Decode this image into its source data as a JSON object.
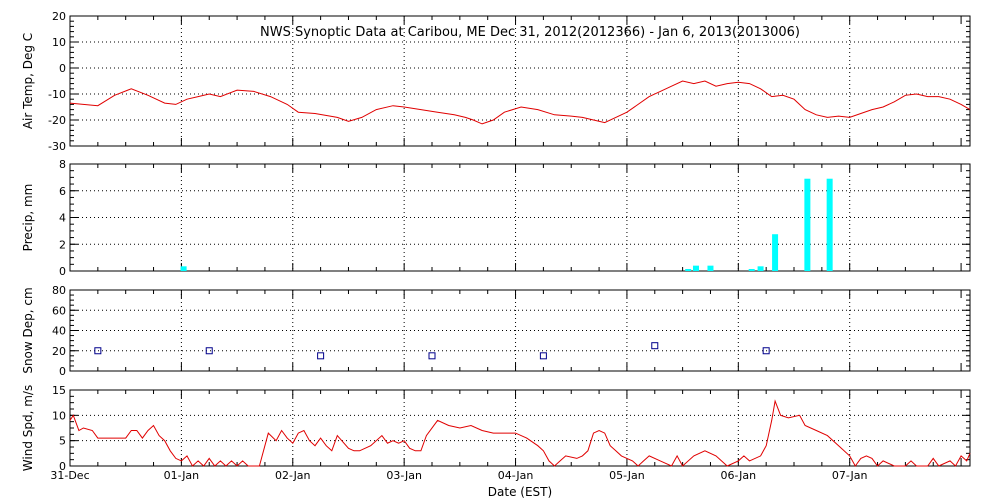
{
  "title": "NWS Synoptic Data at Caribou, ME   Dec 31, 2012(2012366) - Jan  6, 2013(2013006)",
  "xlabel": "Date (EST)",
  "x_ticks": [
    "31-Dec",
    "01-Jan",
    "02-Jan",
    "03-Jan",
    "04-Jan",
    "05-Jan",
    "06-Jan",
    "07-Jan"
  ],
  "colors": {
    "temp": "#e00000",
    "precip": "#00ffff",
    "snow": "#00008b",
    "wind": "#e00000",
    "grid": "#000000"
  },
  "chart_data": [
    {
      "type": "line",
      "ylabel": "Air Temp, Deg C",
      "ylim": [
        -30,
        20
      ],
      "yticks": [
        20,
        10,
        0,
        -10,
        -20,
        -30
      ],
      "grid": true,
      "x_unit": "days since 31-Dec 00:00",
      "points": [
        [
          0,
          -13.5
        ],
        [
          0.25,
          -14.5
        ],
        [
          0.4,
          -10.5
        ],
        [
          0.55,
          -8
        ],
        [
          0.7,
          -10.5
        ],
        [
          0.85,
          -13.5
        ],
        [
          0.95,
          -14
        ],
        [
          1.05,
          -12
        ],
        [
          1.15,
          -11
        ],
        [
          1.25,
          -10
        ],
        [
          1.35,
          -11
        ],
        [
          1.5,
          -8.5
        ],
        [
          1.65,
          -9
        ],
        [
          1.8,
          -11
        ],
        [
          1.95,
          -14
        ],
        [
          2.05,
          -17
        ],
        [
          2.2,
          -17.5
        ],
        [
          2.4,
          -19
        ],
        [
          2.5,
          -20.5
        ],
        [
          2.62,
          -19
        ],
        [
          2.75,
          -16
        ],
        [
          2.9,
          -14.5
        ],
        [
          3.0,
          -15
        ],
        [
          3.15,
          -16
        ],
        [
          3.3,
          -17
        ],
        [
          3.45,
          -18
        ],
        [
          3.55,
          -19
        ],
        [
          3.62,
          -20
        ],
        [
          3.7,
          -21.5
        ],
        [
          3.8,
          -20
        ],
        [
          3.9,
          -17
        ],
        [
          4.05,
          -15
        ],
        [
          4.2,
          -16
        ],
        [
          4.35,
          -18
        ],
        [
          4.5,
          -18.5
        ],
        [
          4.6,
          -19
        ],
        [
          4.7,
          -20
        ],
        [
          4.8,
          -21
        ],
        [
          4.9,
          -19
        ],
        [
          5.0,
          -17
        ],
        [
          5.1,
          -14
        ],
        [
          5.2,
          -11
        ],
        [
          5.3,
          -9
        ],
        [
          5.4,
          -7
        ],
        [
          5.5,
          -5
        ],
        [
          5.6,
          -6
        ],
        [
          5.7,
          -5
        ],
        [
          5.8,
          -7
        ],
        [
          5.9,
          -6
        ],
        [
          6.0,
          -5.5
        ],
        [
          6.1,
          -6
        ],
        [
          6.2,
          -8
        ],
        [
          6.3,
          -11
        ],
        [
          6.4,
          -10.5
        ],
        [
          6.5,
          -12
        ],
        [
          6.6,
          -16
        ],
        [
          6.7,
          -18
        ],
        [
          6.8,
          -19
        ],
        [
          6.9,
          -18.5
        ],
        [
          7.0,
          -19
        ],
        [
          7.1,
          -17.5
        ],
        [
          7.2,
          -16
        ],
        [
          7.3,
          -15
        ],
        [
          7.4,
          -13
        ],
        [
          7.5,
          -10.5
        ],
        [
          7.6,
          -10
        ],
        [
          7.7,
          -11
        ],
        [
          7.8,
          -11
        ],
        [
          7.9,
          -12
        ],
        [
          8.0,
          -14
        ],
        [
          8.08,
          -16
        ]
      ]
    },
    {
      "type": "bar",
      "ylabel": "Precip, mm",
      "ylim": [
        0,
        8
      ],
      "yticks": [
        8,
        6,
        4,
        2,
        0
      ],
      "grid": true,
      "x_unit": "days since 31-Dec 00:00",
      "bars": [
        [
          1.02,
          0.35
        ],
        [
          5.55,
          0.15
        ],
        [
          5.62,
          0.4
        ],
        [
          5.75,
          0.4
        ],
        [
          6.12,
          0.15
        ],
        [
          6.2,
          0.35
        ],
        [
          6.33,
          2.75
        ],
        [
          6.62,
          6.9
        ],
        [
          6.82,
          6.9
        ]
      ]
    },
    {
      "type": "scatter",
      "ylabel": "Snow Dep, cm",
      "ylim": [
        0,
        80
      ],
      "yticks": [
        80,
        60,
        40,
        20,
        0
      ],
      "grid": true,
      "x_unit": "days since 31-Dec 00:00",
      "points": [
        [
          0.25,
          20
        ],
        [
          1.25,
          20
        ],
        [
          2.25,
          15
        ],
        [
          3.25,
          15
        ],
        [
          4.25,
          15
        ],
        [
          5.25,
          25
        ],
        [
          6.25,
          20
        ]
      ]
    },
    {
      "type": "line",
      "ylabel": "Wind Spd, m/s",
      "ylim": [
        0,
        15
      ],
      "yticks": [
        15,
        10,
        5,
        0
      ],
      "grid": true,
      "x_unit": "days since 31-Dec 00:00",
      "points": [
        [
          0,
          9
        ],
        [
          0.03,
          10
        ],
        [
          0.08,
          7
        ],
        [
          0.12,
          7.5
        ],
        [
          0.2,
          7
        ],
        [
          0.25,
          5.5
        ],
        [
          0.4,
          5.5
        ],
        [
          0.5,
          5.5
        ],
        [
          0.55,
          7
        ],
        [
          0.6,
          7
        ],
        [
          0.65,
          5.5
        ],
        [
          0.7,
          7
        ],
        [
          0.75,
          8
        ],
        [
          0.8,
          6
        ],
        [
          0.85,
          5
        ],
        [
          0.9,
          3
        ],
        [
          0.95,
          1.5
        ],
        [
          1.0,
          1
        ],
        [
          1.05,
          2
        ],
        [
          1.1,
          0
        ],
        [
          1.15,
          1
        ],
        [
          1.2,
          0
        ],
        [
          1.25,
          1.5
        ],
        [
          1.3,
          0
        ],
        [
          1.35,
          1
        ],
        [
          1.4,
          0
        ],
        [
          1.45,
          1
        ],
        [
          1.5,
          0
        ],
        [
          1.55,
          1
        ],
        [
          1.6,
          0
        ],
        [
          1.7,
          0
        ],
        [
          1.78,
          6.5
        ],
        [
          1.85,
          5
        ],
        [
          1.9,
          7
        ],
        [
          1.95,
          5.5
        ],
        [
          2.0,
          4.5
        ],
        [
          2.05,
          6.5
        ],
        [
          2.1,
          7
        ],
        [
          2.15,
          5
        ],
        [
          2.2,
          4
        ],
        [
          2.25,
          5.5
        ],
        [
          2.3,
          4
        ],
        [
          2.35,
          3
        ],
        [
          2.4,
          6
        ],
        [
          2.5,
          3.5
        ],
        [
          2.55,
          3
        ],
        [
          2.6,
          3
        ],
        [
          2.7,
          4
        ],
        [
          2.8,
          6
        ],
        [
          2.85,
          4.5
        ],
        [
          2.9,
          5
        ],
        [
          2.95,
          4.5
        ],
        [
          3.0,
          5
        ],
        [
          3.05,
          3.5
        ],
        [
          3.1,
          3
        ],
        [
          3.15,
          3
        ],
        [
          3.2,
          6
        ],
        [
          3.3,
          9
        ],
        [
          3.4,
          8
        ],
        [
          3.5,
          7.5
        ],
        [
          3.6,
          8
        ],
        [
          3.7,
          7
        ],
        [
          3.8,
          6.5
        ],
        [
          3.9,
          6.5
        ],
        [
          4.0,
          6.5
        ],
        [
          4.1,
          5.5
        ],
        [
          4.2,
          4
        ],
        [
          4.25,
          3
        ],
        [
          4.3,
          1
        ],
        [
          4.35,
          0
        ],
        [
          4.4,
          1
        ],
        [
          4.45,
          2
        ],
        [
          4.55,
          1.5
        ],
        [
          4.6,
          2
        ],
        [
          4.65,
          3
        ],
        [
          4.7,
          6.5
        ],
        [
          4.75,
          7
        ],
        [
          4.8,
          6.5
        ],
        [
          4.85,
          4
        ],
        [
          4.9,
          3
        ],
        [
          4.95,
          2
        ],
        [
          5.0,
          1.5
        ],
        [
          5.05,
          1
        ],
        [
          5.1,
          0
        ],
        [
          5.15,
          1
        ],
        [
          5.2,
          2
        ],
        [
          5.3,
          1
        ],
        [
          5.4,
          0
        ],
        [
          5.45,
          2
        ],
        [
          5.5,
          0
        ],
        [
          5.6,
          2
        ],
        [
          5.7,
          3
        ],
        [
          5.8,
          2
        ],
        [
          5.9,
          0
        ],
        [
          6.0,
          1
        ],
        [
          6.05,
          2
        ],
        [
          6.1,
          1
        ],
        [
          6.2,
          2
        ],
        [
          6.25,
          4
        ],
        [
          6.3,
          9
        ],
        [
          6.33,
          12.8
        ],
        [
          6.38,
          10
        ],
        [
          6.45,
          9.5
        ],
        [
          6.55,
          10
        ],
        [
          6.6,
          8
        ],
        [
          6.7,
          7
        ],
        [
          6.8,
          6
        ],
        [
          6.9,
          4
        ],
        [
          7.0,
          2
        ],
        [
          7.05,
          0
        ],
        [
          7.1,
          1.5
        ],
        [
          7.15,
          2
        ],
        [
          7.2,
          1.5
        ],
        [
          7.25,
          0
        ],
        [
          7.3,
          1
        ],
        [
          7.4,
          0
        ],
        [
          7.5,
          0
        ],
        [
          7.55,
          1
        ],
        [
          7.6,
          0
        ],
        [
          7.7,
          0
        ],
        [
          7.75,
          1.5
        ],
        [
          7.8,
          0
        ],
        [
          7.9,
          1
        ],
        [
          7.95,
          0
        ],
        [
          8.0,
          2
        ],
        [
          8.05,
          1
        ],
        [
          8.08,
          2.5
        ]
      ]
    }
  ]
}
